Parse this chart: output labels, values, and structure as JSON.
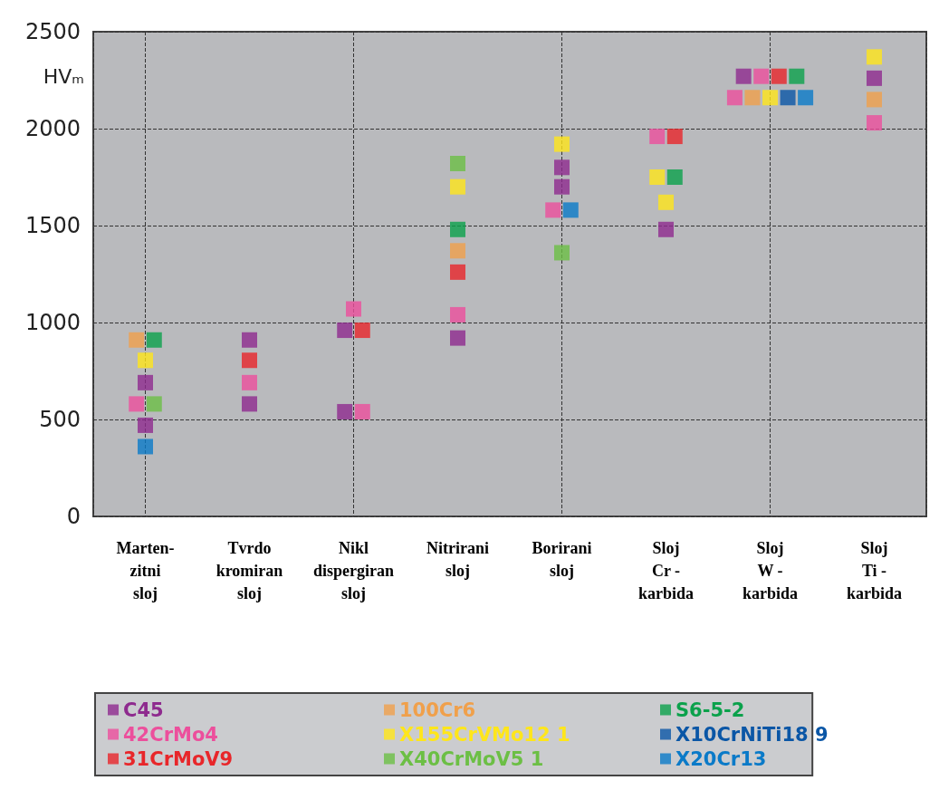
{
  "chart_data": {
    "type": "scatter",
    "ylabel": "HVₘ",
    "categories": [
      "Marten-\nzitni\nsloj",
      "Tvrdo\nkromiran\nsloj",
      "Nikl\ndispergiran\nsloj",
      "Nitrirani\nsloj",
      "Borirani\nsloj",
      "Sloj\nCr -\nkarbida",
      "Sloj\nW -\nkarbida",
      "Sloj\nTi -\nkarbida"
    ],
    "series": [
      {
        "name": "C45",
        "color": "#8e2a8e",
        "x": [
          "Marten-\nzitni\nsloj",
          "Marten-\nzitni\nsloj",
          "Tvrdo\nkromiran\nsloj",
          "Tvrdo\nkromiran\nsloj",
          "Nikl\ndispergiran\nsloj",
          "Nikl\ndispergiran\nsloj",
          "Nitrirani\nsloj",
          "Borirani\nsloj",
          "Borirani\nsloj",
          "Sloj\nCr -\nkarbida",
          "Sloj\nW -\nkarbida",
          "Sloj\nTi -\nkarbida"
        ],
        "values": [
          690,
          470,
          910,
          580,
          960,
          540,
          920,
          1800,
          1700,
          1480,
          2270,
          2260
        ]
      },
      {
        "name": "42CrMo4",
        "color": "#ec4f9c",
        "x": [
          "Marten-\nzitni\nsloj",
          "Tvrdo\nkromiran\nsloj",
          "Nikl\ndispergiran\nsloj",
          "Nikl\ndispergiran\nsloj",
          "Nitrirani\nsloj",
          "Borirani\nsloj",
          "Sloj\nCr -\nkarbida",
          "Sloj\nW -\nkarbida",
          "Sloj\nW -\nkarbida",
          "Sloj\nTi -\nkarbida"
        ],
        "values": [
          580,
          690,
          1070,
          540,
          1040,
          1580,
          1960,
          2270,
          2160,
          2030
        ]
      },
      {
        "name": "31CrMoV9",
        "color": "#e8262a",
        "x": [
          "Tvrdo\nkromiran\nsloj",
          "Nikl\ndispergiran\nsloj",
          "Nitrirani\nsloj",
          "Sloj\nCr -\nkarbida",
          "Sloj\nW -\nkarbida"
        ],
        "values": [
          805,
          960,
          1260,
          1960,
          2270
        ]
      },
      {
        "name": "100Cr6",
        "color": "#f0a04b",
        "x": [
          "Marten-\nzitni\nsloj",
          "Nitrirani\nsloj",
          "Sloj\nW -\nkarbida",
          "Sloj\nTi -\nkarbida"
        ],
        "values": [
          910,
          1370,
          2160,
          2150
        ]
      },
      {
        "name": "X155CrVMo12 1",
        "color": "#ffe61a",
        "x": [
          "Marten-\nzitni\nsloj",
          "Nitrirani\nsloj",
          "Borirani\nsloj",
          "Sloj\nCr -\nkarbida",
          "Sloj\nCr -\nkarbida",
          "Sloj\nW -\nkarbida",
          "Sloj\nTi -\nkarbida"
        ],
        "values": [
          805,
          1700,
          1920,
          1750,
          1620,
          2160,
          2370
        ]
      },
      {
        "name": "X40CrMoV5 1",
        "color": "#6cbf45",
        "x": [
          "Marten-\nzitni\nsloj",
          "Nitrirani\nsloj",
          "Borirani\nsloj"
        ],
        "values": [
          580,
          1820,
          1360
        ]
      },
      {
        "name": "S6-5-2",
        "color": "#0ba14b",
        "x": [
          "Marten-\nzitni\nsloj",
          "Nitrirani\nsloj",
          "Sloj\nCr -\nkarbida",
          "Sloj\nW -\nkarbida"
        ],
        "values": [
          910,
          1480,
          1750,
          2270
        ]
      },
      {
        "name": "X10CrNiTi18 9",
        "color": "#0a56a6",
        "x": [
          "Sloj\nW -\nkarbida"
        ],
        "values": [
          2160
        ]
      },
      {
        "name": "X20Cr13",
        "color": "#0a7ac8",
        "x": [
          "Marten-\nzitni\nsloj",
          "Borirani\nsloj",
          "Sloj\nW -\nkarbida"
        ],
        "values": [
          360,
          1580,
          2160
        ]
      }
    ],
    "ylim": [
      0,
      2500
    ],
    "yticks": [
      0,
      500,
      1000,
      1500,
      2000,
      2500
    ],
    "grid": true,
    "legend": "bottom",
    "marker": "square"
  }
}
